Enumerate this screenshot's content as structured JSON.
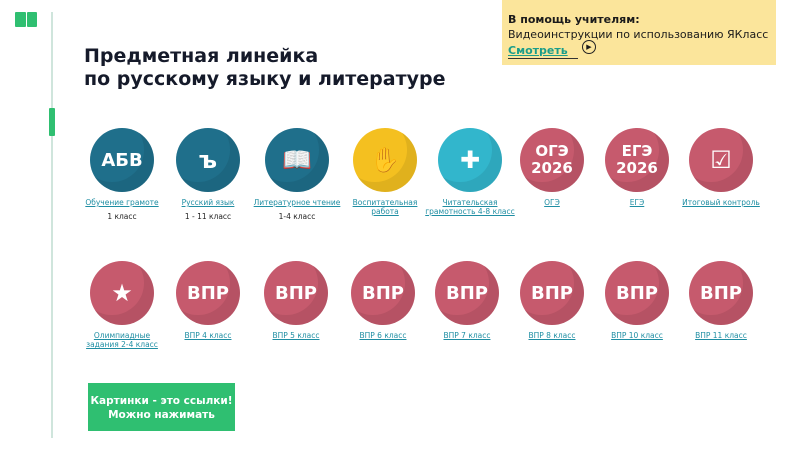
{
  "header": {
    "title_line1": "Предметная линейка",
    "title_line2": "по русскому языку и литературе"
  },
  "help": {
    "heading": "В помощь учителям:",
    "text": "Видеоинструкции по использованию ЯКласс",
    "link": "Смотреть",
    "play_icon": "▶"
  },
  "colors": {
    "green": "#2fbf71",
    "teal": "#1f6f8b",
    "pink": "#c65a6d",
    "yellow_panel": "#fbe59b"
  },
  "row1": [
    {
      "icon": "abc-book-icon",
      "glyph": "АБВ",
      "label": "Обучение грамоте",
      "sub": "1 класс"
    },
    {
      "icon": "speech-bubble-icon",
      "glyph": "ъ",
      "label": "Русский язык",
      "sub": "1 - 11 класс"
    },
    {
      "icon": "open-book-icon",
      "glyph": "📖",
      "label": "Литературное чтение",
      "sub": "1-4 класс"
    },
    {
      "icon": "hand-heart-icon",
      "glyph": "✋",
      "label": "Воспитательная работа",
      "sub": ""
    },
    {
      "icon": "puzzle-icon",
      "glyph": "✚",
      "label": "Читательская грамотность 4-8 класс",
      "sub": ""
    },
    {
      "icon": "oge-icon",
      "glyph": "ОГЭ 2026",
      "label": "ОГЭ",
      "sub": ""
    },
    {
      "icon": "ege-icon",
      "glyph": "ЕГЭ 2026",
      "label": "ЕГЭ",
      "sub": ""
    },
    {
      "icon": "checklist-icon",
      "glyph": "☑",
      "label": "Итоговый контроль",
      "sub": ""
    }
  ],
  "row2": [
    {
      "icon": "medal-icon",
      "glyph": "★",
      "label": "Олимпиадные задания 2-4 класс"
    },
    {
      "icon": "vpr-icon",
      "glyph": "ВПР",
      "label": "ВПР 4 класс"
    },
    {
      "icon": "vpr-icon",
      "glyph": "ВПР",
      "label": "ВПР 5 класс"
    },
    {
      "icon": "vpr-icon",
      "glyph": "ВПР",
      "label": "ВПР 6 класс"
    },
    {
      "icon": "vpr-icon",
      "glyph": "ВПР",
      "label": "ВПР 7 класс"
    },
    {
      "icon": "vpr-icon",
      "glyph": "ВПР",
      "label": "ВПР 8 класс"
    },
    {
      "icon": "vpr-icon",
      "glyph": "ВПР",
      "label": "ВПР 10 класс"
    },
    {
      "icon": "vpr-icon",
      "glyph": "ВПР",
      "label": "ВПР 11 класс"
    }
  ],
  "cta": {
    "line1": "Картинки - это ссылки!",
    "line2": "Можно нажимать"
  }
}
